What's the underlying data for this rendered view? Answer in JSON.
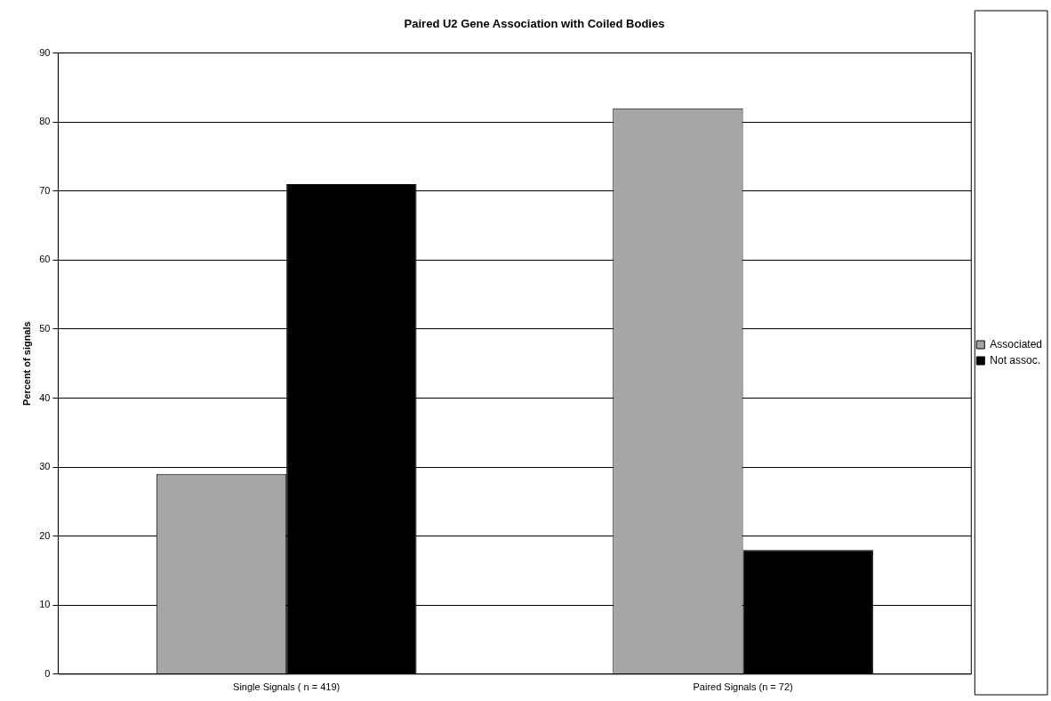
{
  "chart_data": {
    "type": "bar",
    "title": "Paired U2 Gene Association with Coiled Bodies",
    "ylabel": "Percent of signals",
    "categories": [
      "Single Signals ( n = 419)",
      "Paired Signals (n = 72)"
    ],
    "series": [
      {
        "name": "Associated",
        "color": "#a6a6a6",
        "values": [
          29,
          82
        ]
      },
      {
        "name": "Not assoc.",
        "color": "#000000",
        "values": [
          71,
          18
        ]
      }
    ],
    "ylim": [
      0,
      90
    ],
    "yticks": [
      0,
      10,
      20,
      30,
      40,
      50,
      60,
      70,
      80,
      90
    ],
    "grid": "y",
    "legend": "right"
  }
}
